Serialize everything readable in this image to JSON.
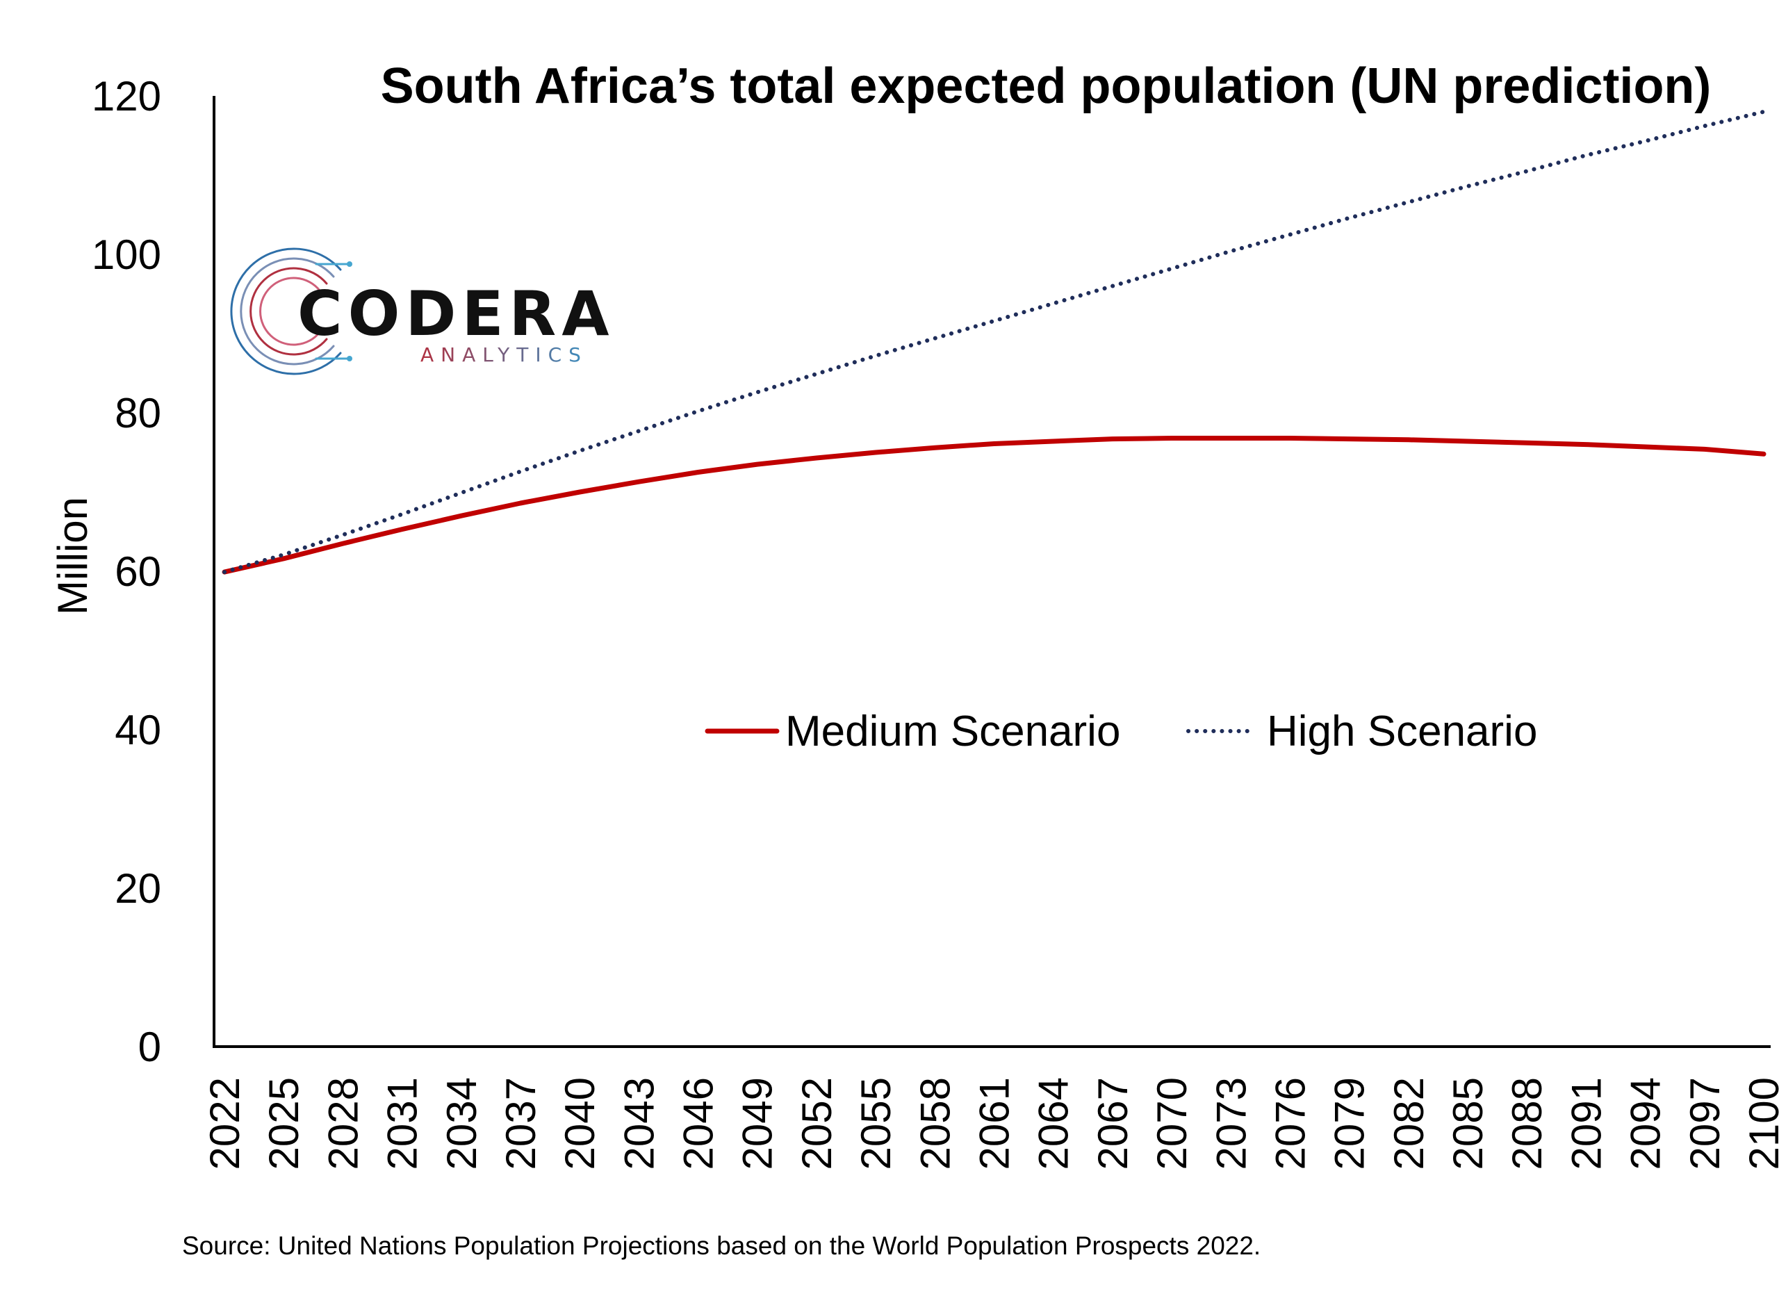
{
  "chart_data": {
    "type": "line",
    "title": "South Africa’s total expected population  (UN prediction)",
    "xlabel": "",
    "ylabel": "Million",
    "ylim": [
      0,
      120
    ],
    "yticks": [
      0,
      20,
      40,
      60,
      80,
      100,
      120
    ],
    "xlim": [
      2022,
      2100
    ],
    "xticks": [
      2022,
      2025,
      2028,
      2031,
      2034,
      2037,
      2040,
      2043,
      2046,
      2049,
      2052,
      2055,
      2058,
      2061,
      2064,
      2067,
      2070,
      2073,
      2076,
      2079,
      2082,
      2085,
      2088,
      2091,
      2094,
      2097,
      2100
    ],
    "grid": false,
    "legend_position": "center",
    "x": [
      2022,
      2025,
      2028,
      2031,
      2034,
      2037,
      2040,
      2043,
      2046,
      2049,
      2052,
      2055,
      2058,
      2061,
      2064,
      2067,
      2070,
      2073,
      2076,
      2079,
      2082,
      2085,
      2088,
      2091,
      2094,
      2097,
      2100
    ],
    "series": [
      {
        "name": "Medium Scenario",
        "color": "#c00000",
        "style": "solid",
        "values": [
          59.9,
          61.6,
          63.5,
          65.3,
          67.0,
          68.6,
          70.0,
          71.3,
          72.5,
          73.5,
          74.3,
          75.0,
          75.6,
          76.1,
          76.4,
          76.7,
          76.8,
          76.8,
          76.8,
          76.7,
          76.6,
          76.4,
          76.2,
          76.0,
          75.7,
          75.4,
          74.8
        ]
      },
      {
        "name": "High Scenario",
        "color": "#1f2d5a",
        "style": "dotted",
        "values": [
          59.9,
          62.1,
          64.6,
          67.2,
          69.9,
          72.6,
          75.2,
          77.7,
          80.2,
          82.6,
          84.9,
          87.2,
          89.4,
          91.6,
          93.8,
          96.0,
          98.2,
          100.4,
          102.5,
          104.6,
          106.6,
          108.6,
          110.5,
          112.5,
          114.3,
          116.2,
          118.0
        ]
      }
    ]
  },
  "source_note": "Source: United Nations Population Projections based on the World Population Prospects 2022.",
  "logo": {
    "name": "CODERA",
    "tagline": "ANALYTICS"
  }
}
